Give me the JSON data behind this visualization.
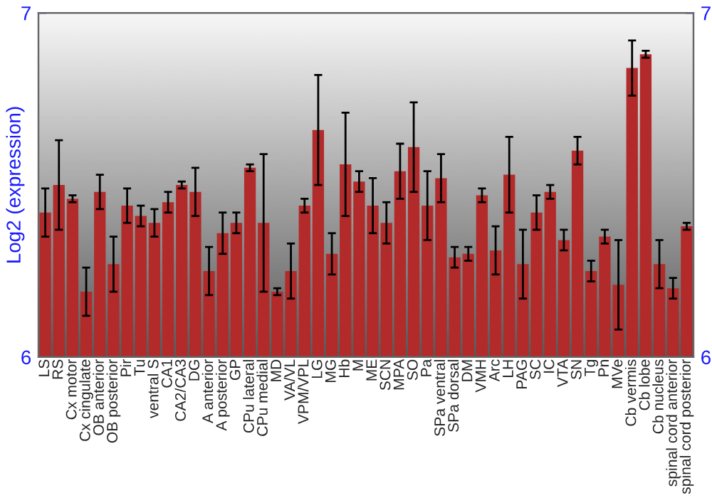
{
  "chart_data": {
    "type": "bar",
    "ylabel": "Log2 (expression)",
    "categories": [
      "LS",
      "RS",
      "Cx motor",
      "Cx cingulate",
      "OB anterior",
      "OB posterior",
      "Pir",
      "Tu",
      "ventral S",
      "CA1",
      "CA2/CA3",
      "DG",
      "A anterior",
      "A posterior",
      "GP",
      "CPu lateral",
      "CPu medial",
      "MD",
      "VA/VL",
      "VPM/VPL",
      "LG",
      "MG",
      "Hb",
      "M",
      "ME",
      "SCN",
      "MPA",
      "SO",
      "Pa",
      "SPa ventral",
      "SPa dorsal",
      "DM",
      "VMH",
      "Arc",
      "LH",
      "PAG",
      "SC",
      "IC",
      "VTA",
      "SN",
      "Tg",
      "Pn",
      "MVe",
      "Cb vermis",
      "Cb lobe",
      "Cb nucleus",
      "spinal cord anterior",
      "spinal cord posterior"
    ],
    "values": [
      6.42,
      6.5,
      6.46,
      6.19,
      6.48,
      6.27,
      6.44,
      6.41,
      6.39,
      6.45,
      6.5,
      6.48,
      6.25,
      6.36,
      6.39,
      6.55,
      6.39,
      6.19,
      6.25,
      6.44,
      6.66,
      6.3,
      6.56,
      6.51,
      6.44,
      6.39,
      6.54,
      6.61,
      6.44,
      6.52,
      6.29,
      6.3,
      6.47,
      6.31,
      6.53,
      6.27,
      6.42,
      6.48,
      6.34,
      6.6,
      6.25,
      6.35,
      6.21,
      6.84,
      6.88,
      6.27,
      6.2,
      6.38
    ],
    "errors": [
      0.07,
      0.13,
      0.01,
      0.07,
      0.05,
      0.08,
      0.05,
      0.03,
      0.04,
      0.03,
      0.01,
      0.07,
      0.07,
      0.06,
      0.03,
      0.01,
      0.2,
      0.01,
      0.08,
      0.02,
      0.16,
      0.06,
      0.15,
      0.03,
      0.08,
      0.06,
      0.08,
      0.13,
      0.1,
      0.07,
      0.03,
      0.02,
      0.02,
      0.07,
      0.11,
      0.1,
      0.05,
      0.02,
      0.03,
      0.04,
      0.03,
      0.02,
      0.13,
      0.08,
      0.01,
      0.07,
      0.03,
      0.01
    ],
    "color": "#b22a2a",
    "ylim": [
      6,
      7
    ],
    "yticks": [
      6,
      7
    ],
    "y2lim": [
      6,
      7
    ],
    "y2ticks": [
      6,
      7
    ],
    "grid": false,
    "legend": false
  }
}
